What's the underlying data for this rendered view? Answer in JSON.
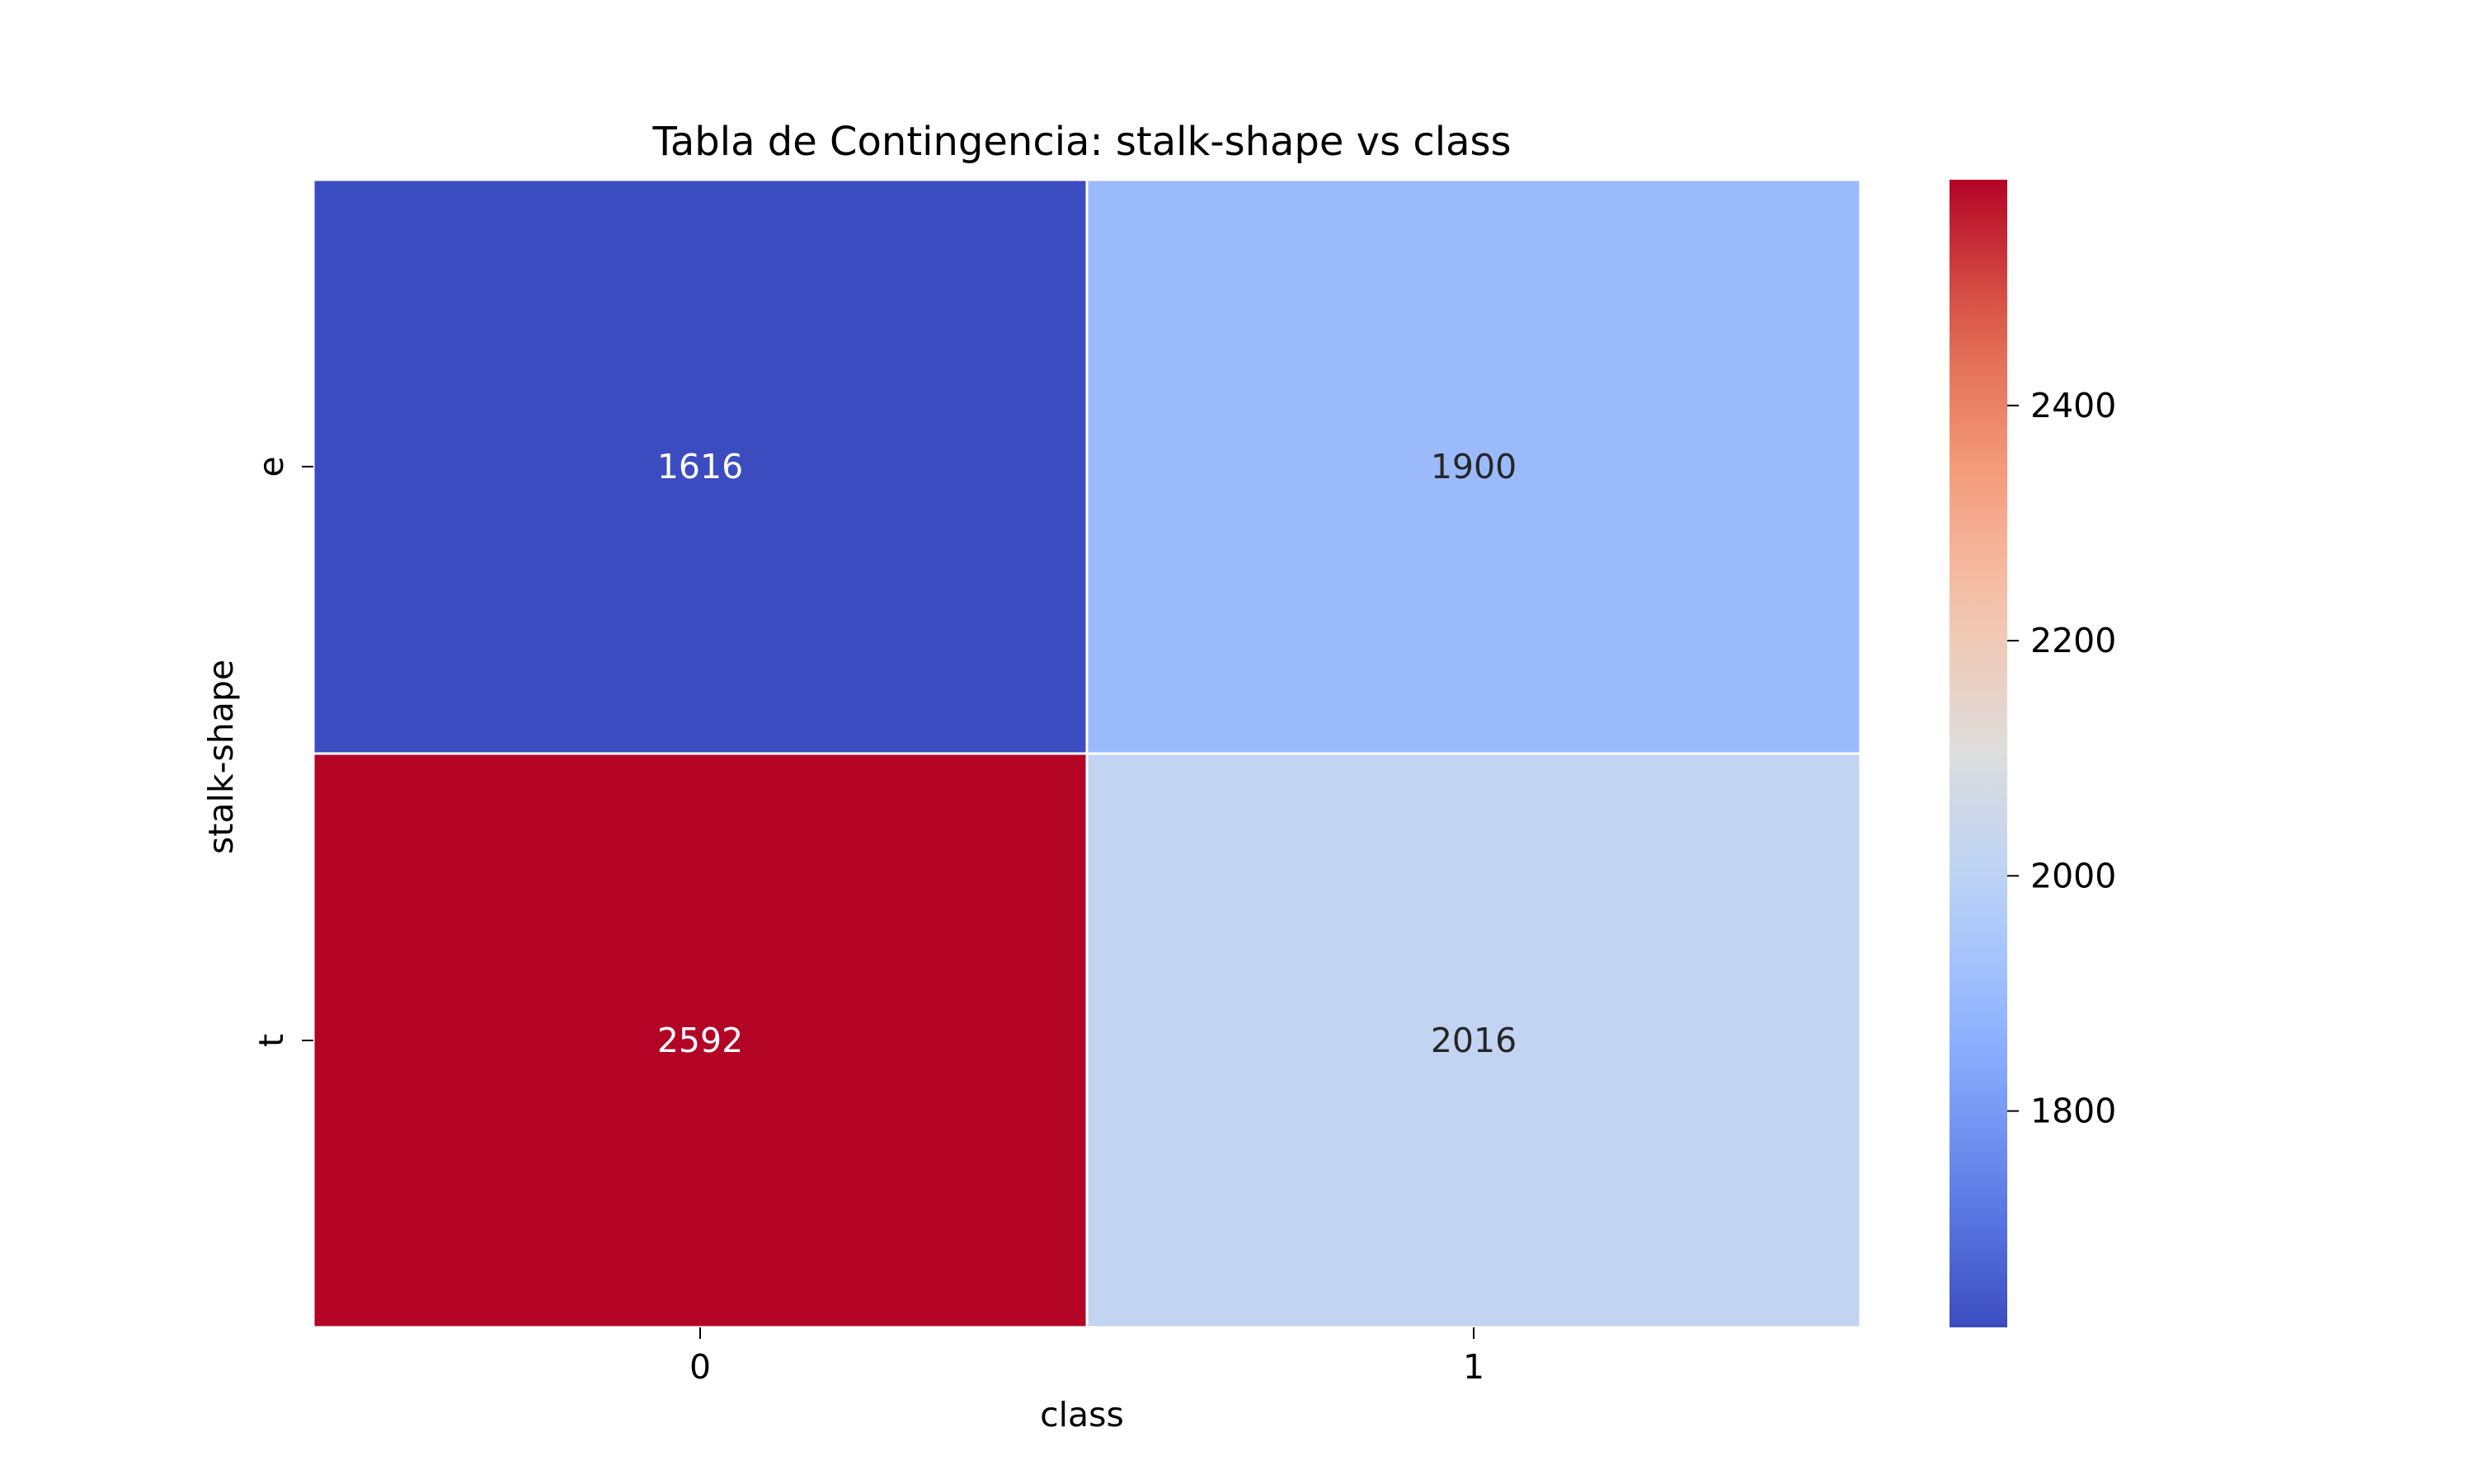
{
  "chart_data": {
    "type": "heatmap",
    "title": "Tabla de Contingencia: stalk-shape vs class",
    "xlabel": "class",
    "ylabel": "stalk-shape",
    "x_categories": [
      "0",
      "1"
    ],
    "y_categories": [
      "e",
      "t"
    ],
    "values": [
      [
        1616,
        1900
      ],
      [
        2592,
        2016
      ]
    ],
    "colormap": "coolwarm",
    "color_range": [
      1616,
      2592
    ],
    "colorbar_ticks": [
      1800,
      2000,
      2200,
      2400
    ],
    "colorbar_tick_labels": [
      "1800",
      "2000",
      "2200",
      "2400"
    ],
    "cell_labels": [
      [
        "1616",
        "1900"
      ],
      [
        "2592",
        "2016"
      ]
    ],
    "cell_divider_color": "#ffffff"
  }
}
